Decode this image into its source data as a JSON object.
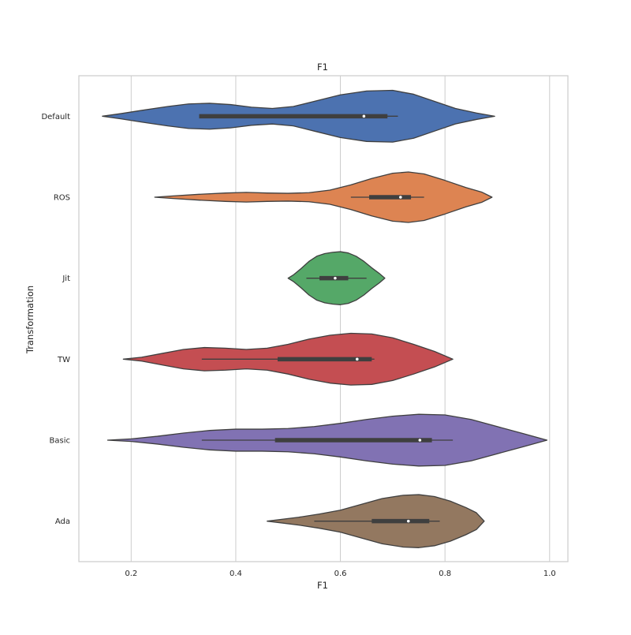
{
  "chart_data": {
    "type": "violin",
    "title": "F1",
    "xlabel": "F1",
    "ylabel": "Transformation",
    "xlim": [
      0.1,
      1.035
    ],
    "xticks": [
      0.2,
      0.4,
      0.6,
      0.8,
      1.0
    ],
    "xtick_labels": [
      "0.2",
      "0.4",
      "0.6",
      "0.8",
      "1.0"
    ],
    "grid": "vertical",
    "orientation": "horizontal",
    "categories": [
      "Default",
      "ROS",
      "Jit",
      "TW",
      "Basic",
      "Ada"
    ],
    "series": [
      {
        "category": "Default",
        "color": "#4c72b0",
        "min": 0.145,
        "max": 0.895,
        "q1": 0.33,
        "median": 0.645,
        "q3": 0.69,
        "whisker_low": 0.33,
        "whisker_high": 0.71,
        "density": [
          [
            0.145,
            0.0
          ],
          [
            0.18,
            0.08
          ],
          [
            0.22,
            0.18
          ],
          [
            0.27,
            0.3
          ],
          [
            0.31,
            0.38
          ],
          [
            0.35,
            0.4
          ],
          [
            0.39,
            0.36
          ],
          [
            0.43,
            0.28
          ],
          [
            0.47,
            0.24
          ],
          [
            0.51,
            0.3
          ],
          [
            0.55,
            0.46
          ],
          [
            0.6,
            0.66
          ],
          [
            0.65,
            0.78
          ],
          [
            0.7,
            0.8
          ],
          [
            0.74,
            0.68
          ],
          [
            0.78,
            0.46
          ],
          [
            0.82,
            0.24
          ],
          [
            0.86,
            0.1
          ],
          [
            0.895,
            0.0
          ]
        ]
      },
      {
        "category": "ROS",
        "color": "#dd8452",
        "min": 0.245,
        "max": 0.89,
        "q1": 0.655,
        "median": 0.715,
        "q3": 0.735,
        "whisker_low": 0.62,
        "whisker_high": 0.76,
        "density": [
          [
            0.245,
            0.0
          ],
          [
            0.28,
            0.04
          ],
          [
            0.33,
            0.09
          ],
          [
            0.38,
            0.13
          ],
          [
            0.42,
            0.15
          ],
          [
            0.46,
            0.13
          ],
          [
            0.5,
            0.12
          ],
          [
            0.54,
            0.14
          ],
          [
            0.58,
            0.22
          ],
          [
            0.62,
            0.38
          ],
          [
            0.66,
            0.58
          ],
          [
            0.7,
            0.74
          ],
          [
            0.73,
            0.78
          ],
          [
            0.76,
            0.72
          ],
          [
            0.8,
            0.52
          ],
          [
            0.84,
            0.3
          ],
          [
            0.87,
            0.16
          ],
          [
            0.89,
            0.0
          ]
        ]
      },
      {
        "category": "Jit",
        "color": "#55a868",
        "min": 0.5,
        "max": 0.685,
        "q1": 0.56,
        "median": 0.59,
        "q3": 0.615,
        "whisker_low": 0.535,
        "whisker_high": 0.65,
        "density": [
          [
            0.5,
            0.0
          ],
          [
            0.51,
            0.1
          ],
          [
            0.525,
            0.3
          ],
          [
            0.54,
            0.52
          ],
          [
            0.555,
            0.68
          ],
          [
            0.57,
            0.76
          ],
          [
            0.585,
            0.8
          ],
          [
            0.6,
            0.82
          ],
          [
            0.615,
            0.78
          ],
          [
            0.63,
            0.68
          ],
          [
            0.645,
            0.52
          ],
          [
            0.66,
            0.32
          ],
          [
            0.675,
            0.14
          ],
          [
            0.685,
            0.0
          ]
        ]
      },
      {
        "category": "TW",
        "color": "#c44e52",
        "min": 0.185,
        "max": 0.815,
        "q1": 0.48,
        "median": 0.632,
        "q3": 0.66,
        "whisker_low": 0.335,
        "whisker_high": 0.665,
        "density": [
          [
            0.185,
            0.0
          ],
          [
            0.22,
            0.06
          ],
          [
            0.26,
            0.18
          ],
          [
            0.3,
            0.3
          ],
          [
            0.34,
            0.36
          ],
          [
            0.38,
            0.34
          ],
          [
            0.42,
            0.3
          ],
          [
            0.46,
            0.34
          ],
          [
            0.5,
            0.46
          ],
          [
            0.54,
            0.62
          ],
          [
            0.58,
            0.74
          ],
          [
            0.62,
            0.8
          ],
          [
            0.66,
            0.78
          ],
          [
            0.7,
            0.66
          ],
          [
            0.74,
            0.46
          ],
          [
            0.78,
            0.24
          ],
          [
            0.815,
            0.0
          ]
        ]
      },
      {
        "category": "Basic",
        "color": "#8172b3",
        "min": 0.155,
        "max": 0.995,
        "q1": 0.475,
        "median": 0.752,
        "q3": 0.775,
        "whisker_low": 0.335,
        "whisker_high": 0.815,
        "density": [
          [
            0.155,
            0.0
          ],
          [
            0.2,
            0.04
          ],
          [
            0.25,
            0.12
          ],
          [
            0.3,
            0.22
          ],
          [
            0.35,
            0.3
          ],
          [
            0.4,
            0.34
          ],
          [
            0.45,
            0.34
          ],
          [
            0.5,
            0.36
          ],
          [
            0.55,
            0.42
          ],
          [
            0.6,
            0.52
          ],
          [
            0.65,
            0.64
          ],
          [
            0.7,
            0.74
          ],
          [
            0.75,
            0.8
          ],
          [
            0.8,
            0.78
          ],
          [
            0.85,
            0.64
          ],
          [
            0.9,
            0.42
          ],
          [
            0.95,
            0.2
          ],
          [
            0.995,
            0.0
          ]
        ]
      },
      {
        "category": "Ada",
        "color": "#937860",
        "min": 0.46,
        "max": 0.875,
        "q1": 0.66,
        "median": 0.73,
        "q3": 0.77,
        "whisker_low": 0.55,
        "whisker_high": 0.79,
        "density": [
          [
            0.46,
            0.0
          ],
          [
            0.48,
            0.04
          ],
          [
            0.52,
            0.12
          ],
          [
            0.56,
            0.22
          ],
          [
            0.6,
            0.34
          ],
          [
            0.64,
            0.52
          ],
          [
            0.68,
            0.7
          ],
          [
            0.72,
            0.8
          ],
          [
            0.75,
            0.82
          ],
          [
            0.78,
            0.76
          ],
          [
            0.81,
            0.62
          ],
          [
            0.84,
            0.42
          ],
          [
            0.86,
            0.26
          ],
          [
            0.875,
            0.0
          ]
        ]
      }
    ]
  }
}
